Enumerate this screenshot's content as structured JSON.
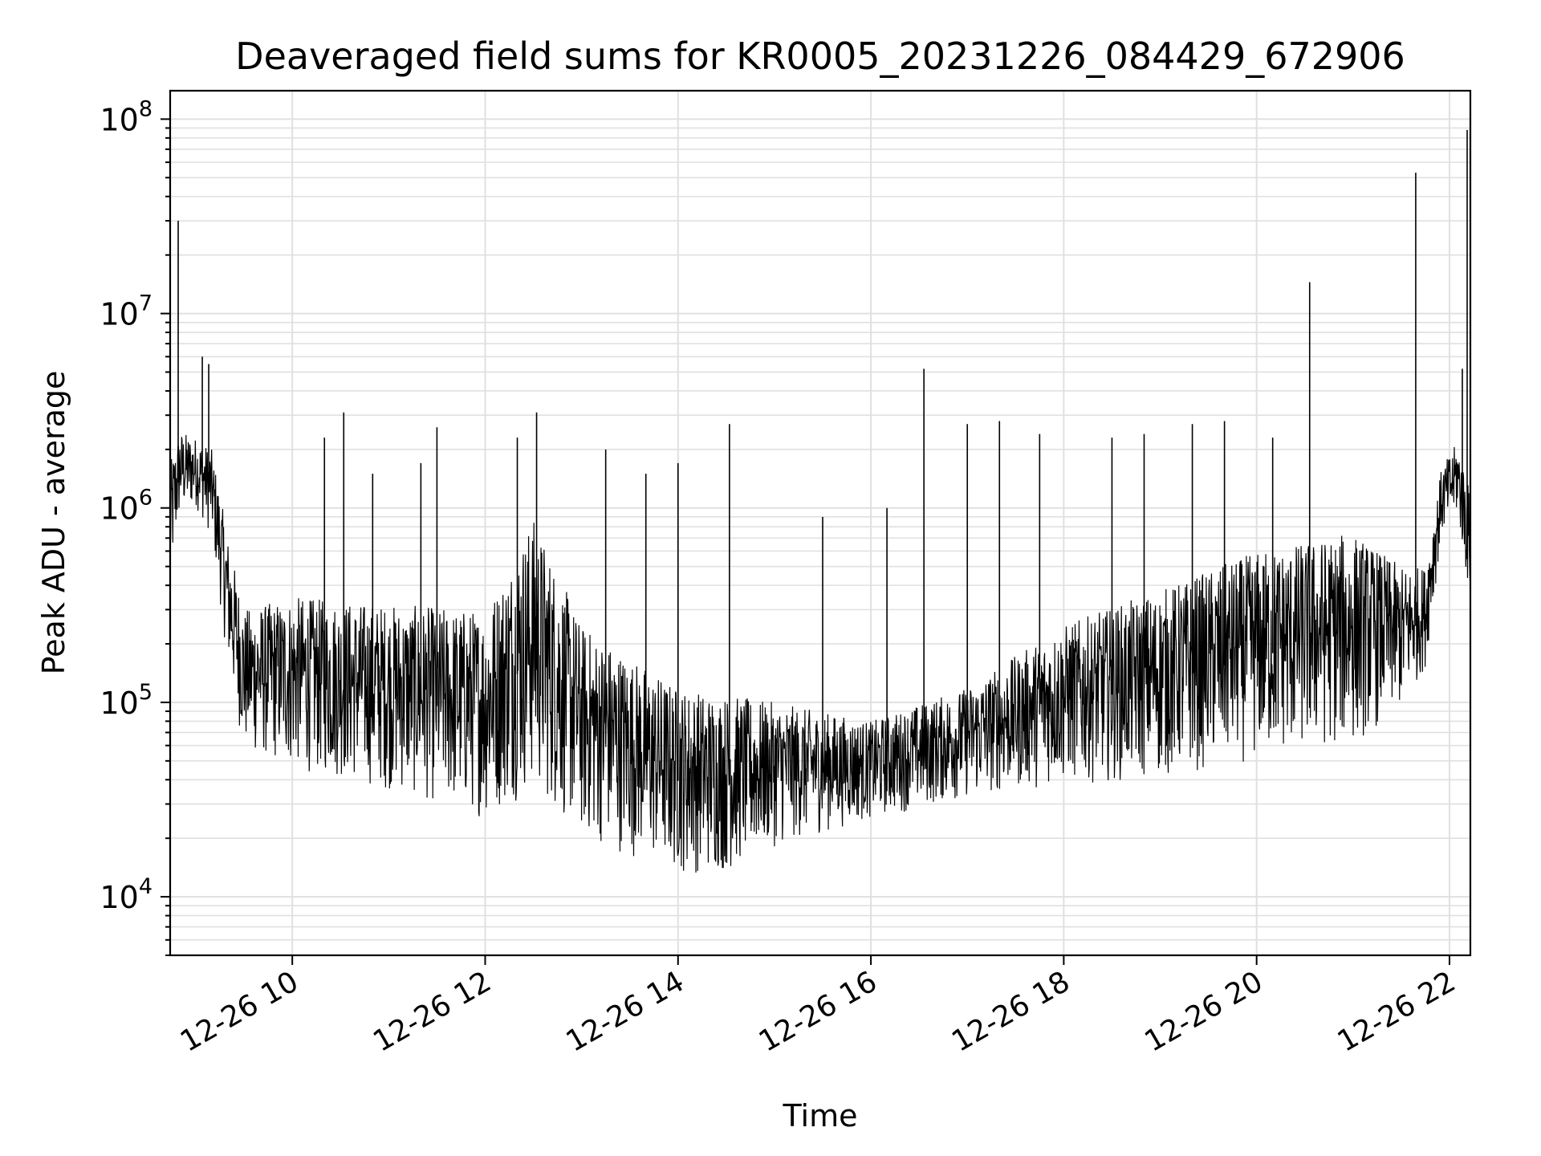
{
  "chart_data": {
    "type": "line",
    "title": "Deaveraged field sums for KR0005_20231226_084429_672906",
    "xlabel": "Time",
    "ylabel": "Peak ADU - average",
    "yscale": "log",
    "ylim": [
      5000,
      140000000
    ],
    "xlim": [
      "2023-12-26 08:44",
      "2023-12-26 22:13"
    ],
    "x_ticks": [
      "2023-12-26 10:00",
      "2023-12-26 12:00",
      "2023-12-26 14:00",
      "2023-12-26 16:00",
      "2023-12-26 18:00",
      "2023-12-26 20:00",
      "2023-12-26 22:00"
    ],
    "x_tick_labels": [
      "12-26 10",
      "12-26 12",
      "12-26 14",
      "12-26 16",
      "12-26 18",
      "12-26 20",
      "12-26 22"
    ],
    "y_tick_labels": [
      {
        "base": "10",
        "exp": "4",
        "value": 10000
      },
      {
        "base": "10",
        "exp": "5",
        "value": 100000
      },
      {
        "base": "10",
        "exp": "6",
        "value": 1000000
      },
      {
        "base": "10",
        "exp": "7",
        "value": 10000000
      },
      {
        "base": "10",
        "exp": "8",
        "value": 100000000
      }
    ],
    "grid": true,
    "line_color": "#000000",
    "envelope": [
      {
        "t": "2023-12-26 08:44",
        "hi": 1700000,
        "lo": 370000
      },
      {
        "t": "2023-12-26 08:50",
        "hi": 2500000,
        "lo": 900000
      },
      {
        "t": "2023-12-26 09:00",
        "hi": 2300000,
        "lo": 1000000
      },
      {
        "t": "2023-12-26 09:10",
        "hi": 2000000,
        "lo": 700000
      },
      {
        "t": "2023-12-26 09:20",
        "hi": 700000,
        "lo": 150000
      },
      {
        "t": "2023-12-26 09:30",
        "hi": 300000,
        "lo": 55000
      },
      {
        "t": "2023-12-26 10:00",
        "hi": 350000,
        "lo": 45000
      },
      {
        "t": "2023-12-26 11:00",
        "hi": 320000,
        "lo": 35000
      },
      {
        "t": "2023-12-26 12:00",
        "hi": 300000,
        "lo": 25000
      },
      {
        "t": "2023-12-26 12:30",
        "hi": 900000,
        "lo": 35000
      },
      {
        "t": "2023-12-26 13:00",
        "hi": 250000,
        "lo": 20000
      },
      {
        "t": "2023-12-26 14:00",
        "hi": 120000,
        "lo": 13000
      },
      {
        "t": "2023-12-26 14:30",
        "hi": 110000,
        "lo": 13000
      },
      {
        "t": "2023-12-26 15:00",
        "hi": 100000,
        "lo": 18000
      },
      {
        "t": "2023-12-26 16:00",
        "hi": 80000,
        "lo": 25000
      },
      {
        "t": "2023-12-26 17:00",
        "hi": 120000,
        "lo": 32000
      },
      {
        "t": "2023-12-26 18:00",
        "hi": 250000,
        "lo": 38000
      },
      {
        "t": "2023-12-26 19:00",
        "hi": 380000,
        "lo": 40000
      },
      {
        "t": "2023-12-26 20:00",
        "hi": 600000,
        "lo": 50000
      },
      {
        "t": "2023-12-26 21:00",
        "hi": 750000,
        "lo": 60000
      },
      {
        "t": "2023-12-26 21:30",
        "hi": 500000,
        "lo": 90000
      },
      {
        "t": "2023-12-26 21:45",
        "hi": 500000,
        "lo": 150000
      },
      {
        "t": "2023-12-26 21:55",
        "hi": 1600000,
        "lo": 700000
      },
      {
        "t": "2023-12-26 22:05",
        "hi": 2200000,
        "lo": 900000
      },
      {
        "t": "2023-12-26 22:13",
        "hi": 1200000,
        "lo": 300000
      }
    ],
    "spikes": [
      {
        "t": "2023-12-26 08:49",
        "y": 30000000
      },
      {
        "t": "2023-12-26 09:04",
        "y": 6000000
      },
      {
        "t": "2023-12-26 09:08",
        "y": 5500000
      },
      {
        "t": "2023-12-26 10:20",
        "y": 2300000
      },
      {
        "t": "2023-12-26 10:32",
        "y": 3100000
      },
      {
        "t": "2023-12-26 10:50",
        "y": 1500000
      },
      {
        "t": "2023-12-26 11:20",
        "y": 1700000
      },
      {
        "t": "2023-12-26 11:30",
        "y": 2600000
      },
      {
        "t": "2023-12-26 12:20",
        "y": 2300000
      },
      {
        "t": "2023-12-26 12:32",
        "y": 3100000
      },
      {
        "t": "2023-12-26 13:15",
        "y": 2000000
      },
      {
        "t": "2023-12-26 13:40",
        "y": 1500000
      },
      {
        "t": "2023-12-26 14:00",
        "y": 1700000
      },
      {
        "t": "2023-12-26 14:32",
        "y": 2700000
      },
      {
        "t": "2023-12-26 15:30",
        "y": 900000
      },
      {
        "t": "2023-12-26 16:10",
        "y": 1000000
      },
      {
        "t": "2023-12-26 16:33",
        "y": 5200000
      },
      {
        "t": "2023-12-26 17:00",
        "y": 2700000
      },
      {
        "t": "2023-12-26 17:20",
        "y": 2800000
      },
      {
        "t": "2023-12-26 17:45",
        "y": 2400000
      },
      {
        "t": "2023-12-26 18:30",
        "y": 2300000
      },
      {
        "t": "2023-12-26 18:50",
        "y": 2400000
      },
      {
        "t": "2023-12-26 19:20",
        "y": 2700000
      },
      {
        "t": "2023-12-26 19:40",
        "y": 2800000
      },
      {
        "t": "2023-12-26 20:10",
        "y": 2300000
      },
      {
        "t": "2023-12-26 20:33",
        "y": 14500000
      },
      {
        "t": "2023-12-26 21:39",
        "y": 53000000
      },
      {
        "t": "2023-12-26 22:08",
        "y": 5200000
      },
      {
        "t": "2023-12-26 22:11",
        "y": 88000000
      }
    ]
  }
}
